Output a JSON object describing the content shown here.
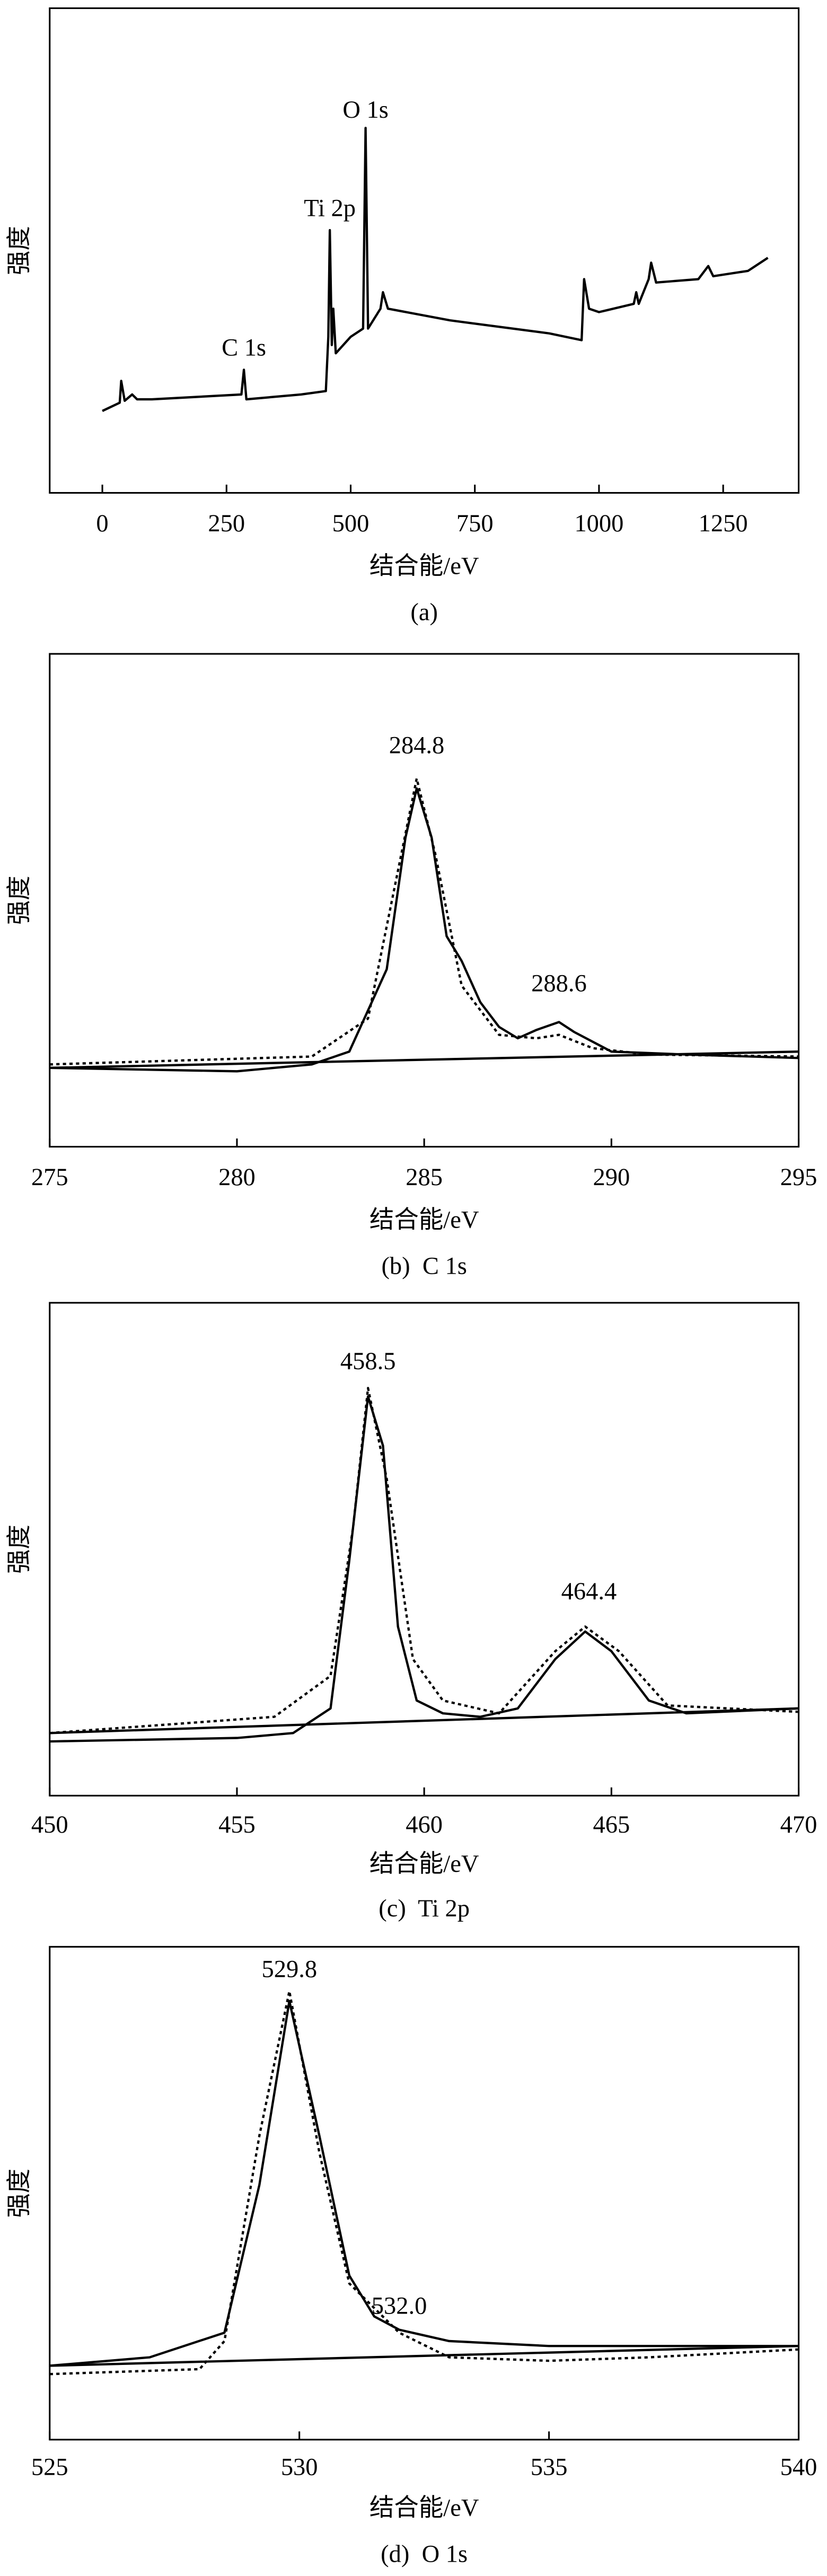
{
  "chart_data": [
    {
      "type": "line",
      "x_label": "结合能/eV",
      "y_label": "强度",
      "caption": "(a)",
      "xlim": [
        -106,
        1402
      ],
      "xticks": [
        0,
        250,
        500,
        750,
        1000,
        1250
      ],
      "ylim": [
        0,
        100
      ],
      "grid": false,
      "series": [
        {
          "color": "#000000",
          "dash": "solid",
          "x": [
            0,
            35,
            38,
            45,
            60,
            70,
            100,
            280,
            285,
            290,
            400,
            450,
            455,
            458,
            462,
            465,
            470,
            500,
            525,
            530,
            535,
            560,
            565,
            575,
            700,
            900,
            965,
            970,
            980,
            1000,
            1070,
            1075,
            1080,
            1100,
            1105,
            1115,
            1200,
            1220,
            1230,
            1300,
            1340
          ],
          "values": [
            16.9,
            18.6,
            23.1,
            19,
            20.3,
            19.3,
            19.3,
            20.3,
            25.4,
            19.3,
            20.3,
            21,
            32.2,
            54.2,
            30.5,
            38,
            28.8,
            32.2,
            33.9,
            75.3,
            33.9,
            38,
            41.4,
            38,
            35.6,
            32.9,
            31.5,
            44.1,
            38,
            37.3,
            39,
            41.4,
            39,
            44.1,
            47.5,
            43.4,
            44.1,
            46.8,
            44.7,
            45.8,
            48.5
          ]
        }
      ],
      "annotations": [
        {
          "text": "C 1s",
          "x": 285,
          "y": 29.5
        },
        {
          "text": "Ti 2p",
          "x": 458,
          "y": 58.3
        },
        {
          "text": "O 1s",
          "x": 530,
          "y": 78.6
        }
      ]
    },
    {
      "type": "line",
      "x_label": "结合能/eV",
      "y_label": "强度",
      "caption": "(b)  C 1s",
      "xlim": [
        275,
        295
      ],
      "xticks": [
        275,
        280,
        285,
        290,
        295
      ],
      "ylim": [
        0,
        100
      ],
      "grid": false,
      "series": [
        {
          "color": "#000000",
          "dash": "solid",
          "x": [
            275,
            280,
            282,
            283,
            284,
            284.5,
            284.8,
            285.2,
            285.6,
            286,
            286.5,
            287,
            287.5,
            288,
            288.6,
            289,
            290,
            292,
            295
          ],
          "values": [
            16,
            15.3,
            16.7,
            19.3,
            36,
            62.7,
            72.7,
            62.7,
            42.7,
            37.7,
            29.3,
            24.3,
            22,
            23.7,
            25.3,
            23.3,
            19.3,
            18.7,
            18
          ]
        },
        {
          "color": "#000000",
          "dash": "dotted",
          "x": [
            275,
            282,
            283.5,
            284.3,
            284.8,
            285.3,
            286,
            287,
            288,
            288.6,
            289.5,
            291,
            295
          ],
          "values": [
            16.7,
            18.3,
            26,
            56,
            74.7,
            59.3,
            32.7,
            22.7,
            22,
            22.7,
            20,
            18.7,
            18.3
          ]
        },
        {
          "color": "#000000",
          "dash": "solid",
          "x": [
            275,
            295
          ],
          "values": [
            16,
            19.3
          ]
        }
      ],
      "annotations": [
        {
          "text": "284.8",
          "x": 284.8,
          "y": 81
        },
        {
          "text": "288.6",
          "x": 288.6,
          "y": 32.7
        }
      ]
    },
    {
      "type": "line",
      "x_label": "结合能/eV",
      "y_label": "强度",
      "caption": "(c)  Ti 2p",
      "xlim": [
        450,
        470
      ],
      "xticks": [
        450,
        455,
        460,
        465,
        470
      ],
      "ylim": [
        0,
        100
      ],
      "grid": false,
      "series": [
        {
          "color": "#000000",
          "dash": "solid",
          "x": [
            450,
            455,
            456.5,
            457.5,
            458,
            458.5,
            458.9,
            459.3,
            459.8,
            460.5,
            461.5,
            462.5,
            463.5,
            464.3,
            465,
            466,
            467,
            470
          ],
          "values": [
            11,
            11.7,
            12.7,
            17.7,
            47.7,
            81,
            71,
            34.3,
            19.3,
            16.7,
            16,
            17.7,
            27.7,
            33.3,
            29.3,
            19.3,
            16.7,
            17.7
          ]
        },
        {
          "color": "#000000",
          "dash": "dotted",
          "x": [
            450,
            456,
            457.5,
            458.1,
            458.5,
            459,
            459.7,
            460.5,
            462,
            463.5,
            464.3,
            465.2,
            466.5,
            470
          ],
          "values": [
            12.7,
            16,
            24.3,
            54.3,
            82.7,
            64.3,
            27.7,
            19.3,
            16.7,
            29.3,
            34.3,
            29.3,
            18.3,
            17
          ]
        },
        {
          "color": "#000000",
          "dash": "solid",
          "x": [
            450,
            470
          ],
          "values": [
            12.7,
            17.7
          ]
        }
      ],
      "annotations": [
        {
          "text": "458.5",
          "x": 458.5,
          "y": 87.7
        },
        {
          "text": "464.4",
          "x": 464.4,
          "y": 41
        }
      ]
    },
    {
      "type": "line",
      "x_label": "结合能/eV",
      "y_label": "强度",
      "caption": "(d)  O 1s",
      "xlim": [
        525,
        540
      ],
      "xticks": [
        525,
        530,
        535,
        540
      ],
      "ylim": [
        0,
        100
      ],
      "grid": false,
      "series": [
        {
          "color": "#000000",
          "dash": "solid",
          "x": [
            525,
            527,
            528.5,
            529.2,
            529.8,
            530.4,
            531,
            531.5,
            532,
            533,
            535,
            540
          ],
          "values": [
            15,
            16.7,
            21.7,
            51.7,
            89,
            61.7,
            33.3,
            25,
            22.3,
            20,
            19,
            19
          ]
        },
        {
          "color": "#000000",
          "dash": "dotted",
          "x": [
            525,
            528,
            528.5,
            529.2,
            529.8,
            530.4,
            531,
            532,
            533,
            535,
            537,
            540
          ],
          "values": [
            13.3,
            14.3,
            20,
            61.7,
            91,
            58.3,
            31.7,
            21.7,
            16.7,
            16,
            16.7,
            18.3
          ]
        },
        {
          "color": "#000000",
          "dash": "solid",
          "x": [
            525,
            540
          ],
          "values": [
            15,
            19
          ]
        }
      ],
      "annotations": [
        {
          "text": "529.8",
          "x": 529.8,
          "y": 95
        },
        {
          "text": "532.0",
          "x": 532.0,
          "y": 26.7
        }
      ]
    }
  ]
}
